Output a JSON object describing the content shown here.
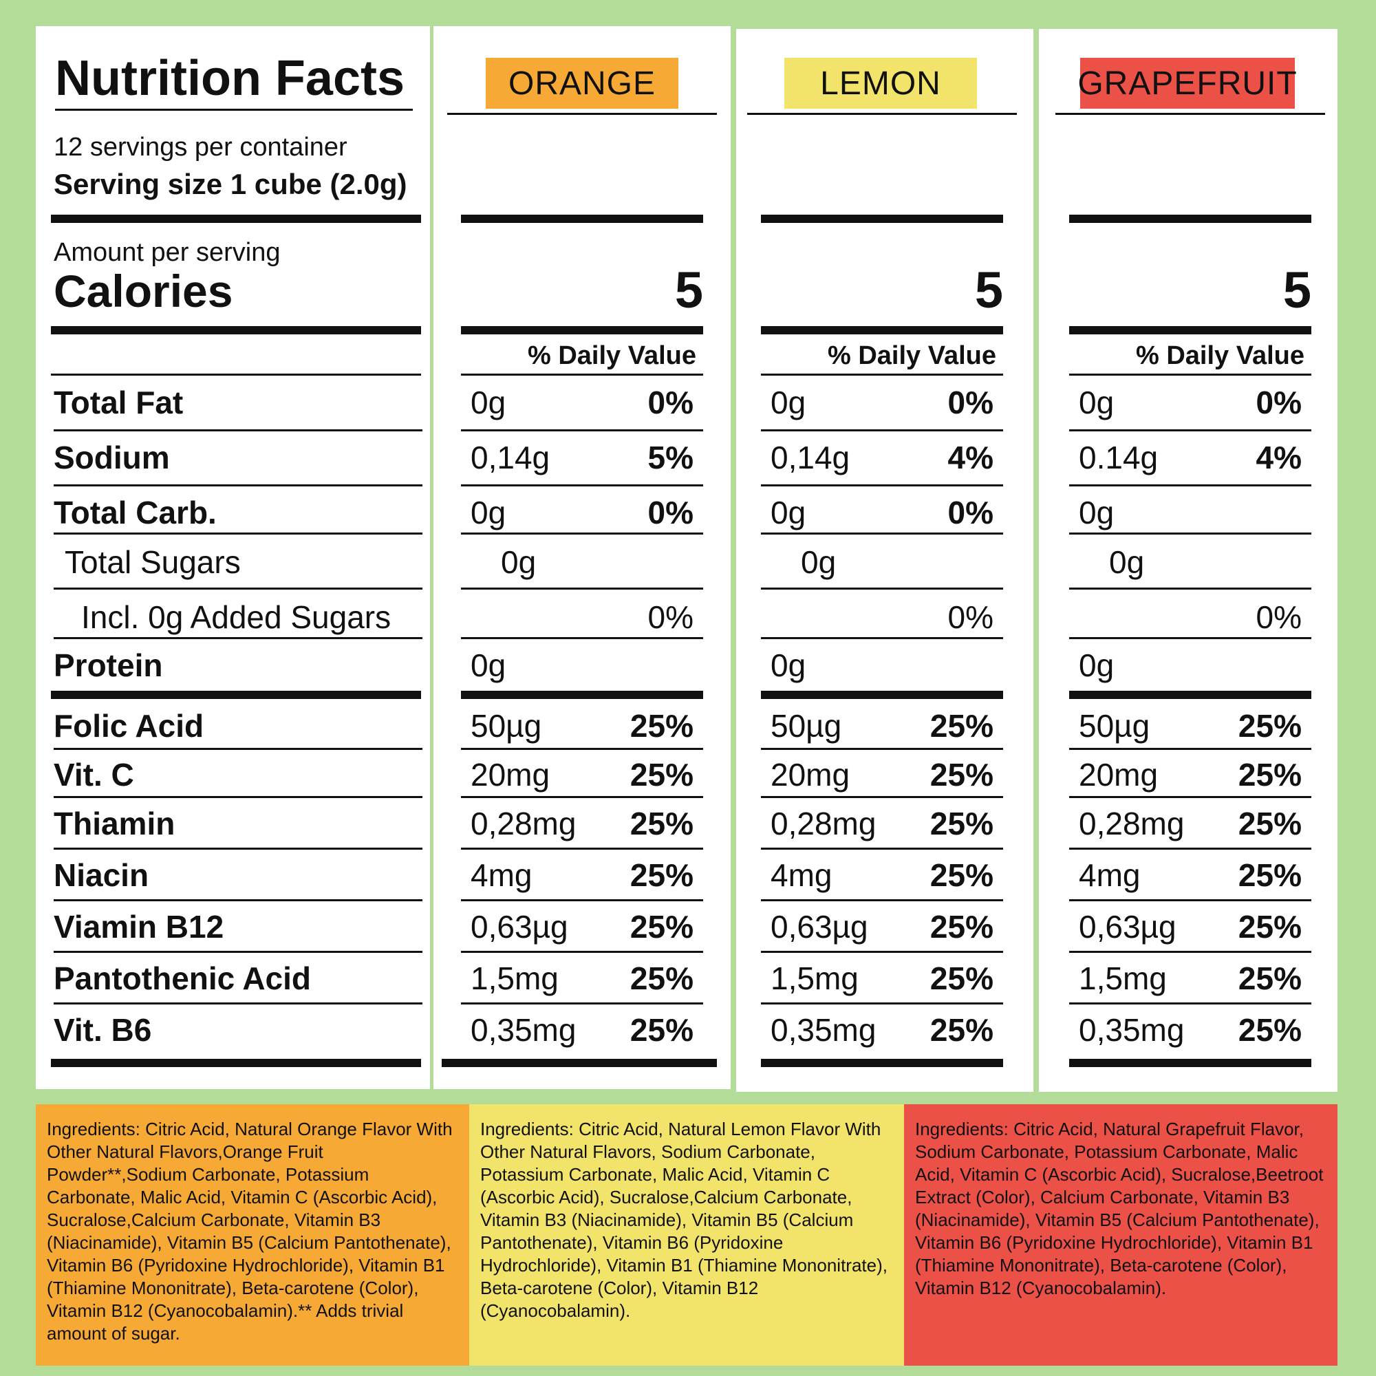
{
  "label": {
    "title": "Nutrition Facts",
    "servings_per_container": "12 servings per container",
    "serving_size": "Serving size  1 cube (2.0g)",
    "amount_per_serving": "Amount per serving",
    "calories": "Calories",
    "nutrients": [
      "Total Fat",
      "Sodium",
      "Total Carb.",
      "Total Sugars",
      "Incl. 0g Added Sugars",
      "Protein",
      "Folic Acid",
      "Vit. C",
      "Thiamin",
      "Niacin",
      "Viamin B12",
      "Pantothenic Acid",
      "Vit. B6"
    ]
  },
  "flavors": [
    {
      "name": "ORANGE",
      "color": "#f7a936",
      "calories": "5",
      "dv_header": "% Daily Value",
      "total_fat": {
        "amount": "0g",
        "pct": "0%"
      },
      "sodium": {
        "amount": "0,14g",
        "pct": "5%"
      },
      "total_carb": {
        "amount": "0g",
        "pct": "0%"
      },
      "total_sugars": {
        "amount": "0g"
      },
      "added_sugars": {
        "pct": "0%"
      },
      "protein": {
        "amount": "0g"
      },
      "vitamins": [
        {
          "amount": "50µg",
          "pct": "25%"
        },
        {
          "amount": "20mg",
          "pct": "25%"
        },
        {
          "amount": "0,28mg",
          "pct": "25%"
        },
        {
          "amount": "4mg",
          "pct": "25%"
        },
        {
          "amount": "0,63µg",
          "pct": "25%"
        },
        {
          "amount": "1,5mg",
          "pct": "25%"
        },
        {
          "amount": "0,35mg",
          "pct": "25%"
        }
      ],
      "ingredients": "Ingredients: Citric Acid, Natural Orange Flavor With Other Natural Flavors,Orange Fruit Powder**,Sodium Carbonate, Potassium Carbonate, Malic Acid, Vitamin C (Ascorbic Acid), Sucralose,Calcium Carbonate, Vitamin B3 (Niacinamide), Vitamin B5 (Calcium Pantothenate), Vitamin B6 (Pyridoxine Hydrochloride), Vitamin B1 (Thiamine Mononitrate), Beta-carotene (Color), Vitamin B12 (Cyanocobalamin).** Adds trivial amount of sugar."
    },
    {
      "name": "LEMON",
      "color": "#f2e36a",
      "calories": "5",
      "dv_header": "% Daily Value",
      "total_fat": {
        "amount": "0g",
        "pct": "0%"
      },
      "sodium": {
        "amount": "0,14g",
        "pct": "4%"
      },
      "total_carb": {
        "amount": "0g",
        "pct": "0%"
      },
      "total_sugars": {
        "amount": "0g"
      },
      "added_sugars": {
        "pct": "0%"
      },
      "protein": {
        "amount": "0g"
      },
      "vitamins": [
        {
          "amount": "50µg",
          "pct": "25%"
        },
        {
          "amount": "20mg",
          "pct": "25%"
        },
        {
          "amount": "0,28mg",
          "pct": "25%"
        },
        {
          "amount": "4mg",
          "pct": "25%"
        },
        {
          "amount": "0,63µg",
          "pct": "25%"
        },
        {
          "amount": "1,5mg",
          "pct": "25%"
        },
        {
          "amount": "0,35mg",
          "pct": "25%"
        }
      ],
      "ingredients": "Ingredients: Citric Acid, Natural Lemon Flavor With Other Natural Flavors, Sodium Carbonate, Potassium Carbonate, Malic Acid, Vitamin C (Ascorbic Acid), Sucralose,Calcium Carbonate, Vitamin B3 (Niacinamide), Vitamin B5 (Calcium Pantothenate), Vitamin B6 (Pyridoxine Hydrochloride), Vitamin B1 (Thiamine Mononitrate), Beta-carotene (Color), Vitamin B12 (Cyanocobalamin)."
    },
    {
      "name": "GRAPEFRUIT",
      "color": "#ec5147",
      "calories": "5",
      "dv_header": "% Daily Value",
      "total_fat": {
        "amount": "0g",
        "pct": "0%"
      },
      "sodium": {
        "amount": "0.14g",
        "pct": "4%"
      },
      "total_carb": {
        "amount": "0g",
        "pct": ""
      },
      "total_sugars": {
        "amount": "0g"
      },
      "added_sugars": {
        "pct": "0%"
      },
      "protein": {
        "amount": "0g"
      },
      "vitamins": [
        {
          "amount": "50µg",
          "pct": "25%"
        },
        {
          "amount": "20mg",
          "pct": "25%"
        },
        {
          "amount": "0,28mg",
          "pct": "25%"
        },
        {
          "amount": "4mg",
          "pct": "25%"
        },
        {
          "amount": "0,63µg",
          "pct": "25%"
        },
        {
          "amount": "1,5mg",
          "pct": "25%"
        },
        {
          "amount": "0,35mg",
          "pct": "25%"
        }
      ],
      "ingredients": "Ingredients: Citric Acid, Natural Grapefruit Flavor, Sodium Carbonate, Potassium Carbonate, Malic Acid, Vitamin C (Ascorbic Acid), Sucralose,Beetroot Extract (Color), Calcium Carbonate, Vitamin B3 (Niacinamide), Vitamin B5 (Calcium Pantothenate), Vitamin B6 (Pyridoxine Hydrochloride), Vitamin B1 (Thiamine Mononitrate), Beta-carotene (Color), Vitamin B12 (Cyanocobalamin)."
    }
  ]
}
